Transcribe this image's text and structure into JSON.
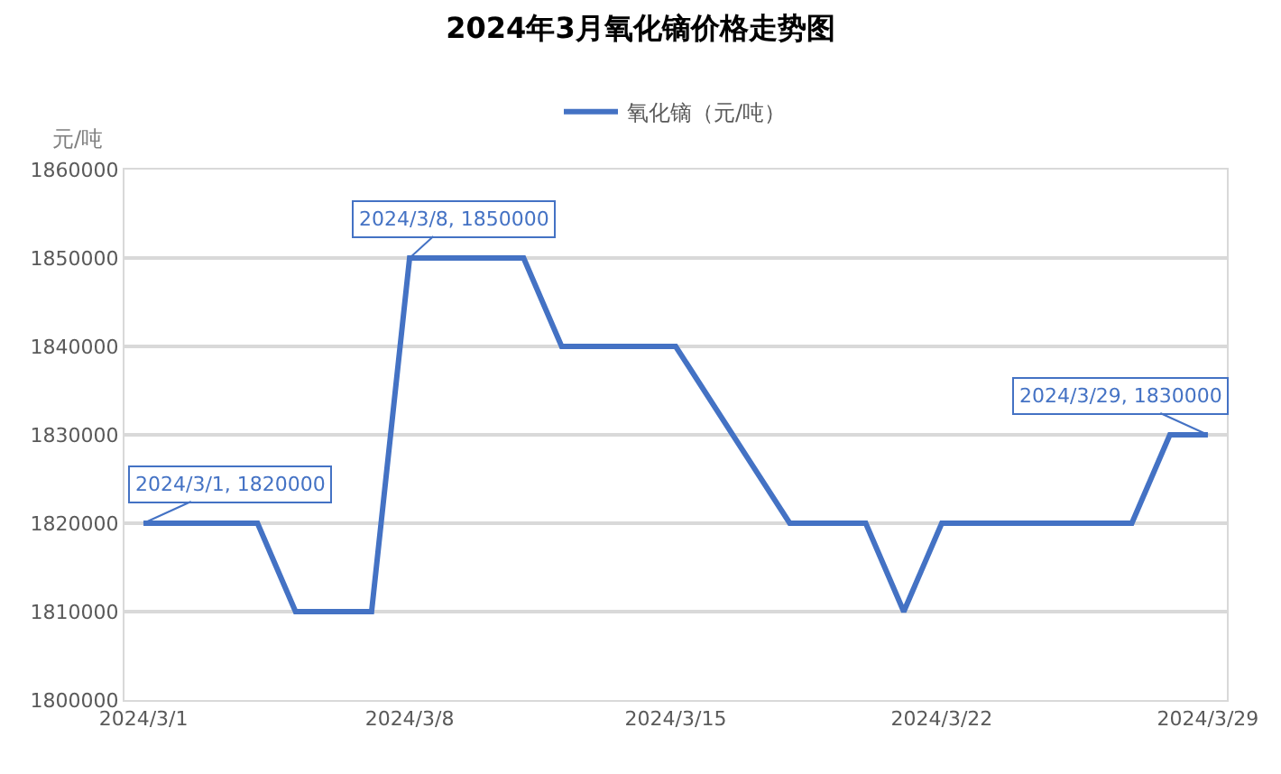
{
  "chart_data": {
    "type": "line",
    "title": "2024年3月氧化镝价格走势图",
    "ylabel": "元/吨",
    "x": [
      "2024-03-01",
      "2024-03-04",
      "2024-03-05",
      "2024-03-06",
      "2024-03-07",
      "2024-03-08",
      "2024-03-11",
      "2024-03-12",
      "2024-03-13",
      "2024-03-14",
      "2024-03-15",
      "2024-03-18",
      "2024-03-19",
      "2024-03-20",
      "2024-03-21",
      "2024-03-22",
      "2024-03-25",
      "2024-03-26",
      "2024-03-27",
      "2024-03-28",
      "2024-03-29"
    ],
    "series": [
      {
        "name": "氧化镝（元/吨）",
        "color": "#4472c4",
        "values": [
          1820000,
          1820000,
          1810000,
          1810000,
          1810000,
          1850000,
          1850000,
          1840000,
          1840000,
          1840000,
          1840000,
          1820000,
          1820000,
          1820000,
          1810000,
          1820000,
          1820000,
          1820000,
          1820000,
          1830000,
          1830000
        ]
      }
    ],
    "annotations": [
      {
        "text": "2024/3/1, 1820000",
        "x": "2024-03-01",
        "y": 1820000
      },
      {
        "text": "2024/3/8, 1850000",
        "x": "2024-03-08",
        "y": 1850000
      },
      {
        "text": "2024/3/29, 1830000",
        "x": "2024-03-29",
        "y": 1830000
      }
    ],
    "xlim": [
      "2024-02-29T12:00",
      "2024-03-29T12:00"
    ],
    "xticks": [
      {
        "value": "2024-03-01",
        "label": "2024/3/1"
      },
      {
        "value": "2024-03-08",
        "label": "2024/3/8"
      },
      {
        "value": "2024-03-15",
        "label": "2024/3/15"
      },
      {
        "value": "2024-03-22",
        "label": "2024/3/22"
      },
      {
        "value": "2024-03-29",
        "label": "2024/3/29"
      }
    ],
    "ylim": [
      1800000,
      1860000
    ],
    "yticks": [
      1800000,
      1810000,
      1820000,
      1830000,
      1840000,
      1850000,
      1860000
    ],
    "grid": "y",
    "legend": "top",
    "marker": "none",
    "line_style": "solid"
  }
}
